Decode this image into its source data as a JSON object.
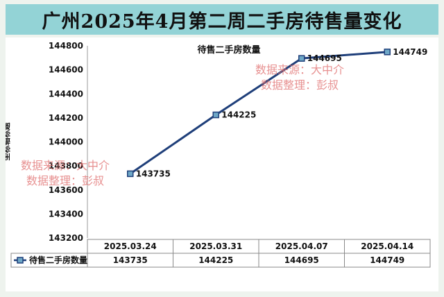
{
  "title": "广州2025年4月第二周二手房待售量变化",
  "colors": {
    "title_bg": "#93d3d6",
    "line": "#1f3f7a",
    "marker_fill": "#6fa8c7",
    "watermark": "#e06b6b"
  },
  "watermarks": [
    {
      "source": "数据来源：大中介",
      "author": "数据整理：彭叔"
    },
    {
      "source": "数据来源：大中介",
      "author": "数据整理：彭叔"
    }
  ],
  "chart_data": {
    "type": "line",
    "title": "待售二手房数量",
    "ylabel": "坐标轴标题",
    "xlabel": "",
    "categories": [
      "2025.03.24",
      "2025.03.31",
      "2025.04.07",
      "2025.04.14"
    ],
    "series": [
      {
        "name": "待售二手房数量",
        "values": [
          143735,
          144225,
          144695,
          144749
        ]
      }
    ],
    "ylim": [
      143200,
      144800
    ],
    "yticks": [
      143200,
      143400,
      143600,
      143800,
      144000,
      144200,
      144400,
      144600,
      144800
    ],
    "grid": false,
    "legend": "data-table",
    "data_table": true
  }
}
